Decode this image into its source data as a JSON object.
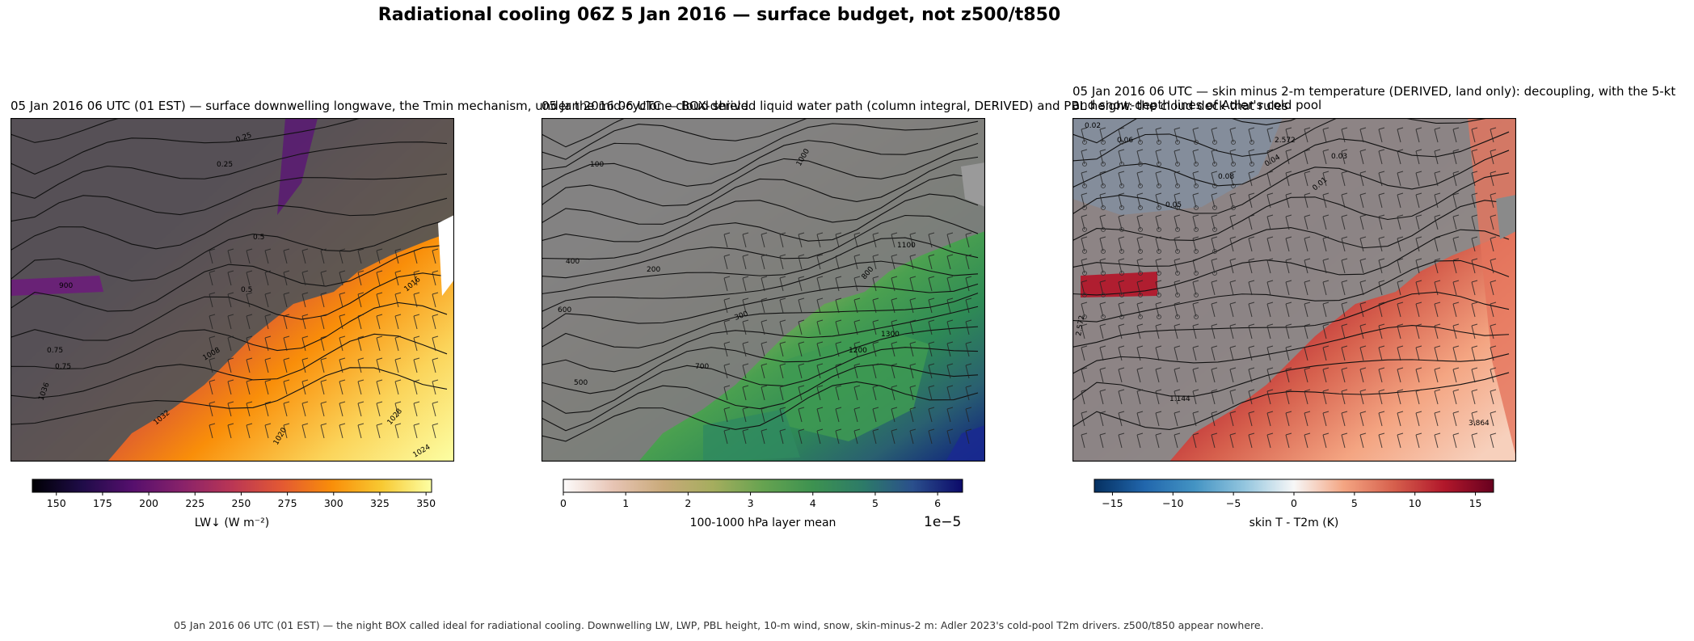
{
  "suptitle": "Radiational cooling 06Z 5 Jan 2016 — surface budget, not z500/t850",
  "panels": [
    {
      "title": "05 Jan 2016 06 UTC (01 EST) — surface downwelling longwave, the Tmin mechanism, under the mid-cyclone cloud shield",
      "colormap": "inferno",
      "colorbar": {
        "label": "LW↓ (W m⁻²)",
        "ticks": [
          "150",
          "175",
          "200",
          "225",
          "250",
          "275",
          "300",
          "325",
          "350"
        ],
        "min": 137,
        "max": 353
      },
      "contour_labels": [
        "0.25",
        "0.5",
        "0.75",
        "0.25",
        "0.5",
        "0.75",
        "1036",
        "1032",
        "1028",
        "1024",
        "1020",
        "1016",
        "1008",
        "900"
      ]
    },
    {
      "title": "05 Jan 2016 06 UTC — BOX-derived liquid water path (column integral, DERIVED) and PBL height: the cloud deck that rules",
      "colormap": "gist_earth_r",
      "colorbar": {
        "label": "100-1000 hPa layer mean",
        "ticks": [
          "0",
          "1",
          "2",
          "3",
          "4",
          "5",
          "6"
        ],
        "min": 0,
        "max": 6.4,
        "offset": "1e−5"
      },
      "contour_labels": [
        "100",
        "200",
        "300",
        "400",
        "500",
        "600",
        "700",
        "800",
        "1000",
        "1100",
        "1200",
        "1300"
      ]
    },
    {
      "title": "05 Jan 2016 06 UTC — skin minus 2-m temperature (DERIVED, land only): decoupling, with the 5-kt\nand snow-depth lines of Adler's cold pool",
      "colormap": "RdBu_r",
      "colorbar": {
        "label": "skin T - T2m (K)",
        "ticks": [
          "−15",
          "−10",
          "−5",
          "0",
          "5",
          "10",
          "15"
        ],
        "min": -16.5,
        "max": 16.5
      },
      "contour_labels": [
        "0.02",
        "2.572",
        "0.04",
        "0.05",
        "0.06",
        "0.08",
        "3.864",
        "1.144",
        "2.572",
        "0.01",
        "0.03"
      ]
    }
  ],
  "footer": "05 Jan 2016 06 UTC (01 EST) — the night BOX called ideal for radiational cooling. Downwelling LW, LWP, PBL height, 10-m wind, snow, skin-minus-2 m: Adler 2023's cold-pool T2m drivers. z500/t850 appear nowhere.",
  "chart_data": [
    {
      "type": "heatmap",
      "title": "05 Jan 2016 06 UTC (01 EST) — surface downwelling longwave, the Tmin mechanism, under the mid-cyclone cloud shield",
      "colorbar_label": "LW↓ (W m⁻²)",
      "colorbar_range": [
        137,
        353
      ],
      "colorbar_ticks": [
        150,
        175,
        200,
        225,
        250,
        275,
        300,
        325,
        350
      ],
      "overlays": [
        "gray land/cloud mask",
        "black contours",
        "wind barbs"
      ]
    },
    {
      "type": "heatmap",
      "title": "05 Jan 2016 06 UTC — BOX-derived liquid water path (column integral, DERIVED) and PBL height: the cloud deck that rules",
      "colorbar_label": "100-1000 hPa layer mean",
      "colorbar_range": [
        0,
        6.4
      ],
      "colorbar_ticks": [
        0,
        1,
        2,
        3,
        4,
        5,
        6
      ],
      "colorbar_offset": "1e−5",
      "overlays": [
        "gray land mask",
        "PBL height contours",
        "wind barbs"
      ]
    },
    {
      "type": "heatmap",
      "title": "05 Jan 2016 06 UTC — skin minus 2-m temperature (DERIVED, land only): decoupling, with the 5-kt and snow-depth lines of Adler's cold pool",
      "colorbar_label": "skin T - T2m (K)",
      "colorbar_range": [
        -16.5,
        16.5
      ],
      "colorbar_ticks": [
        -15,
        -10,
        -5,
        0,
        5,
        10,
        15
      ],
      "overlays": [
        "gray land mask",
        "snow-depth contours",
        "wind barbs",
        "snow markers"
      ]
    }
  ]
}
